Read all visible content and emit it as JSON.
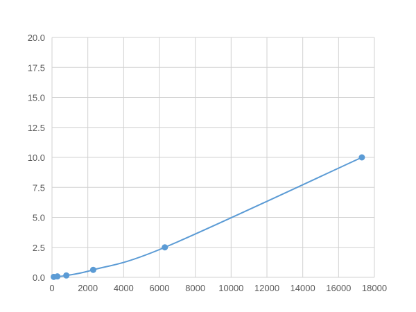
{
  "chart_data": {
    "type": "line",
    "title": "",
    "xlabel": "",
    "ylabel": "",
    "xlim": [
      0,
      18000
    ],
    "ylim": [
      0,
      20
    ],
    "x_ticks": [
      "0",
      "2000",
      "4000",
      "6000",
      "8000",
      "10000",
      "12000",
      "14000",
      "16000",
      "18000"
    ],
    "y_ticks": [
      "0.0",
      "2.5",
      "5.0",
      "7.5",
      "10.0",
      "12.5",
      "15.0",
      "17.5",
      "20.0"
    ],
    "grid": true,
    "legend": "none",
    "series": [
      {
        "x": [
          100,
          300,
          800,
          2300,
          6300,
          17300
        ],
        "y": [
          0.039,
          0.078,
          0.156,
          0.625,
          2.5,
          10.0
        ],
        "color": "#5b9bd5",
        "smooth": true,
        "markers": true
      }
    ]
  }
}
